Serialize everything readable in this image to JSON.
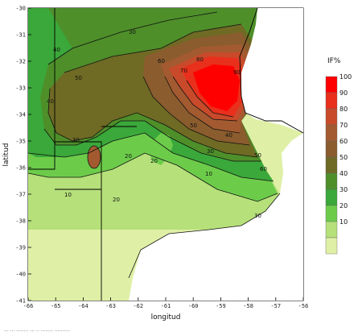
{
  "chart_data": {
    "type": "contour_map",
    "x_axis": {
      "label": "longitud",
      "ticks": [
        "-66",
        "-65",
        "-64",
        "-63",
        "-62",
        "-61",
        "-60",
        "-59",
        "-58",
        "-57",
        "-56"
      ],
      "range": [
        -66,
        -56
      ]
    },
    "y_axis": {
      "label": "latitud",
      "ticks": [
        "-30",
        "-31",
        "-32",
        "-33",
        "-34",
        "-35",
        "-36",
        "-37",
        "-38",
        "-39",
        "-40",
        "-41"
      ],
      "range": [
        -41,
        -30
      ]
    },
    "legend": {
      "title": "IF%",
      "placement": "right",
      "bins": [
        {
          "label": "100",
          "color": "#ff0000"
        },
        {
          "label": "90",
          "color": "#e8301c"
        },
        {
          "label": "80",
          "color": "#c84a2a"
        },
        {
          "label": "70",
          "color": "#a35a30"
        },
        {
          "label": "60",
          "color": "#8a5c2e"
        },
        {
          "label": "50",
          "color": "#6f6a24"
        },
        {
          "label": "40",
          "color": "#4e8f2a"
        },
        {
          "label": "30",
          "color": "#3aa83a"
        },
        {
          "label": "20",
          "color": "#6ccc4a"
        },
        {
          "label": "10",
          "color": "#b6e07a"
        },
        {
          "label": "",
          "color": "#dff0a6"
        }
      ]
    },
    "contour_labels": [
      "30",
      "40",
      "50",
      "60",
      "70",
      "80",
      "90",
      "50",
      "40",
      "30",
      "20",
      "10",
      "20",
      "30",
      "40",
      "50",
      "60",
      "10",
      "20",
      "30"
    ],
    "caption_fragment": "···  ···  ········  ···  ··  ········  ··········"
  }
}
